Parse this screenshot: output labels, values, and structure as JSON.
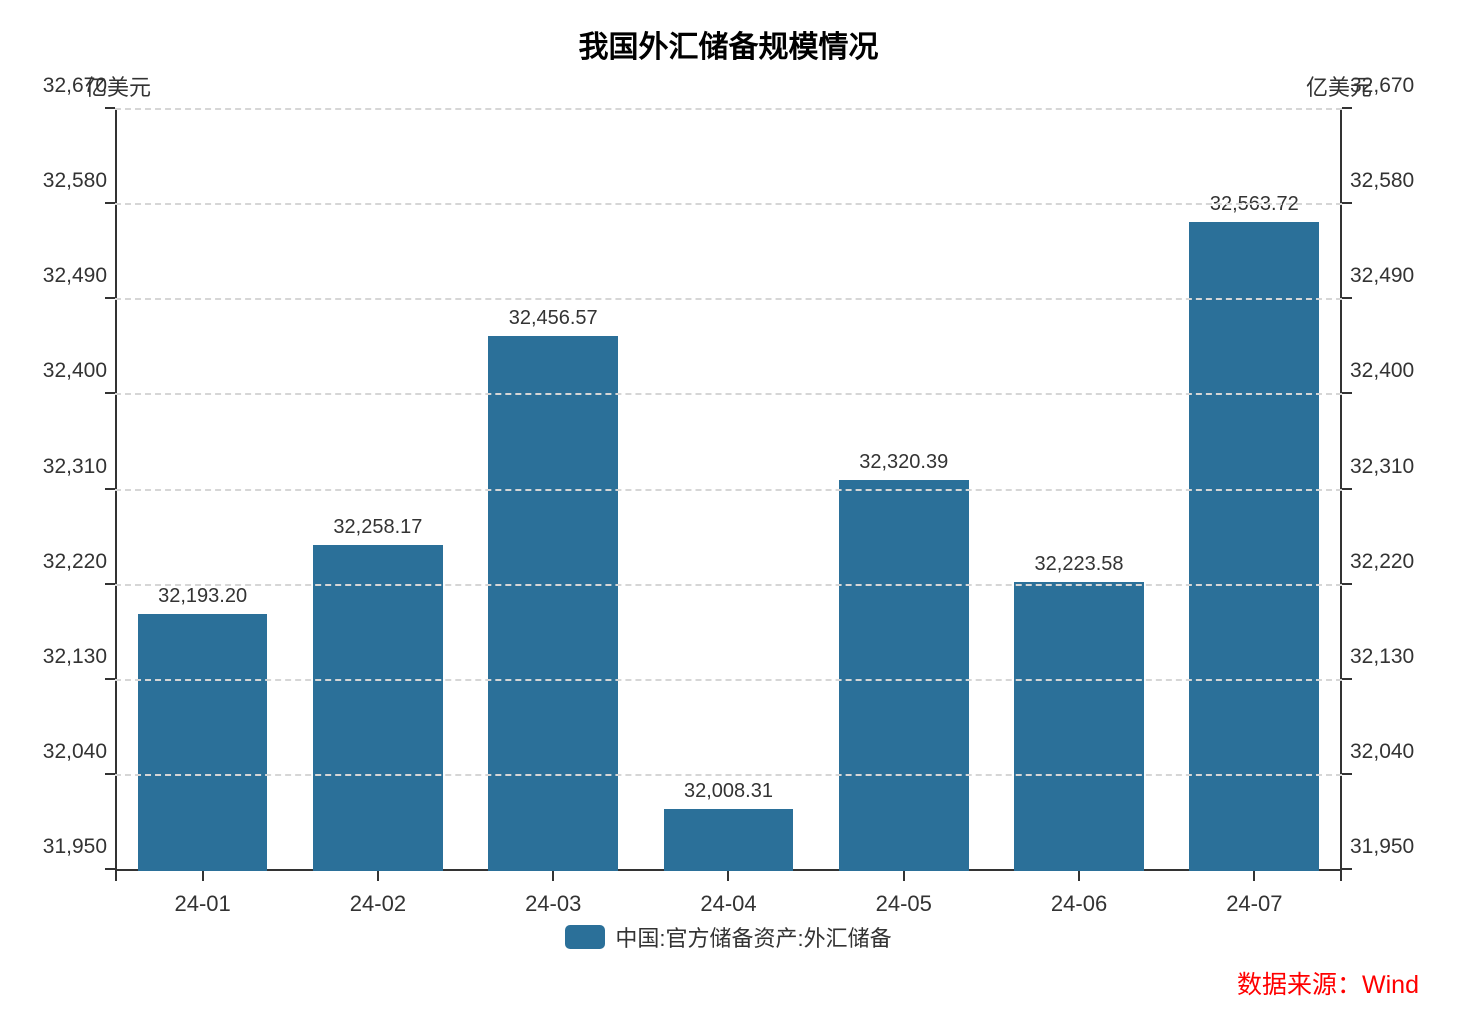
{
  "chart": {
    "type": "bar",
    "title": "我国外汇储备规模情况",
    "title_fontsize": 30,
    "left_axis": {
      "unit": "亿美元",
      "unit_fontsize": 22
    },
    "right_axis": {
      "unit": "亿美元",
      "unit_fontsize": 22
    },
    "categories": [
      "24-01",
      "24-02",
      "24-03",
      "24-04",
      "24-05",
      "24-06",
      "24-07"
    ],
    "values": [
      32193.2,
      32258.17,
      32456.57,
      32008.31,
      32320.39,
      32223.58,
      32563.72
    ],
    "bar_labels": [
      "32,193.20",
      "32,258.17",
      "32,456.57",
      "32,008.31",
      "32,320.39",
      "32,223.58",
      "32,563.72"
    ],
    "bar_color": "#2b7099",
    "ylim": [
      31950,
      32670
    ],
    "yticks": [
      31950,
      32040,
      32130,
      32220,
      32310,
      32400,
      32490,
      32580,
      32670
    ],
    "ytick_labels": [
      "31,950",
      "32,040",
      "32,130",
      "32,220",
      "32,310",
      "32,400",
      "32,490",
      "32,580",
      "32,670"
    ],
    "grid_color": "#d6d6d6",
    "axis_color": "#333333",
    "background_color": "#ffffff",
    "tick_fontsize": 21,
    "xtick_fontsize": 22,
    "bar_label_fontsize": 20,
    "bar_width_ratio": 0.74,
    "legend": {
      "label": "中国:官方储备资产:外汇储备",
      "swatch_color": "#2b7099",
      "fontsize": 22
    },
    "source": {
      "text": "数据来源：Wind",
      "color": "#ff0000",
      "fontsize": 25
    }
  }
}
